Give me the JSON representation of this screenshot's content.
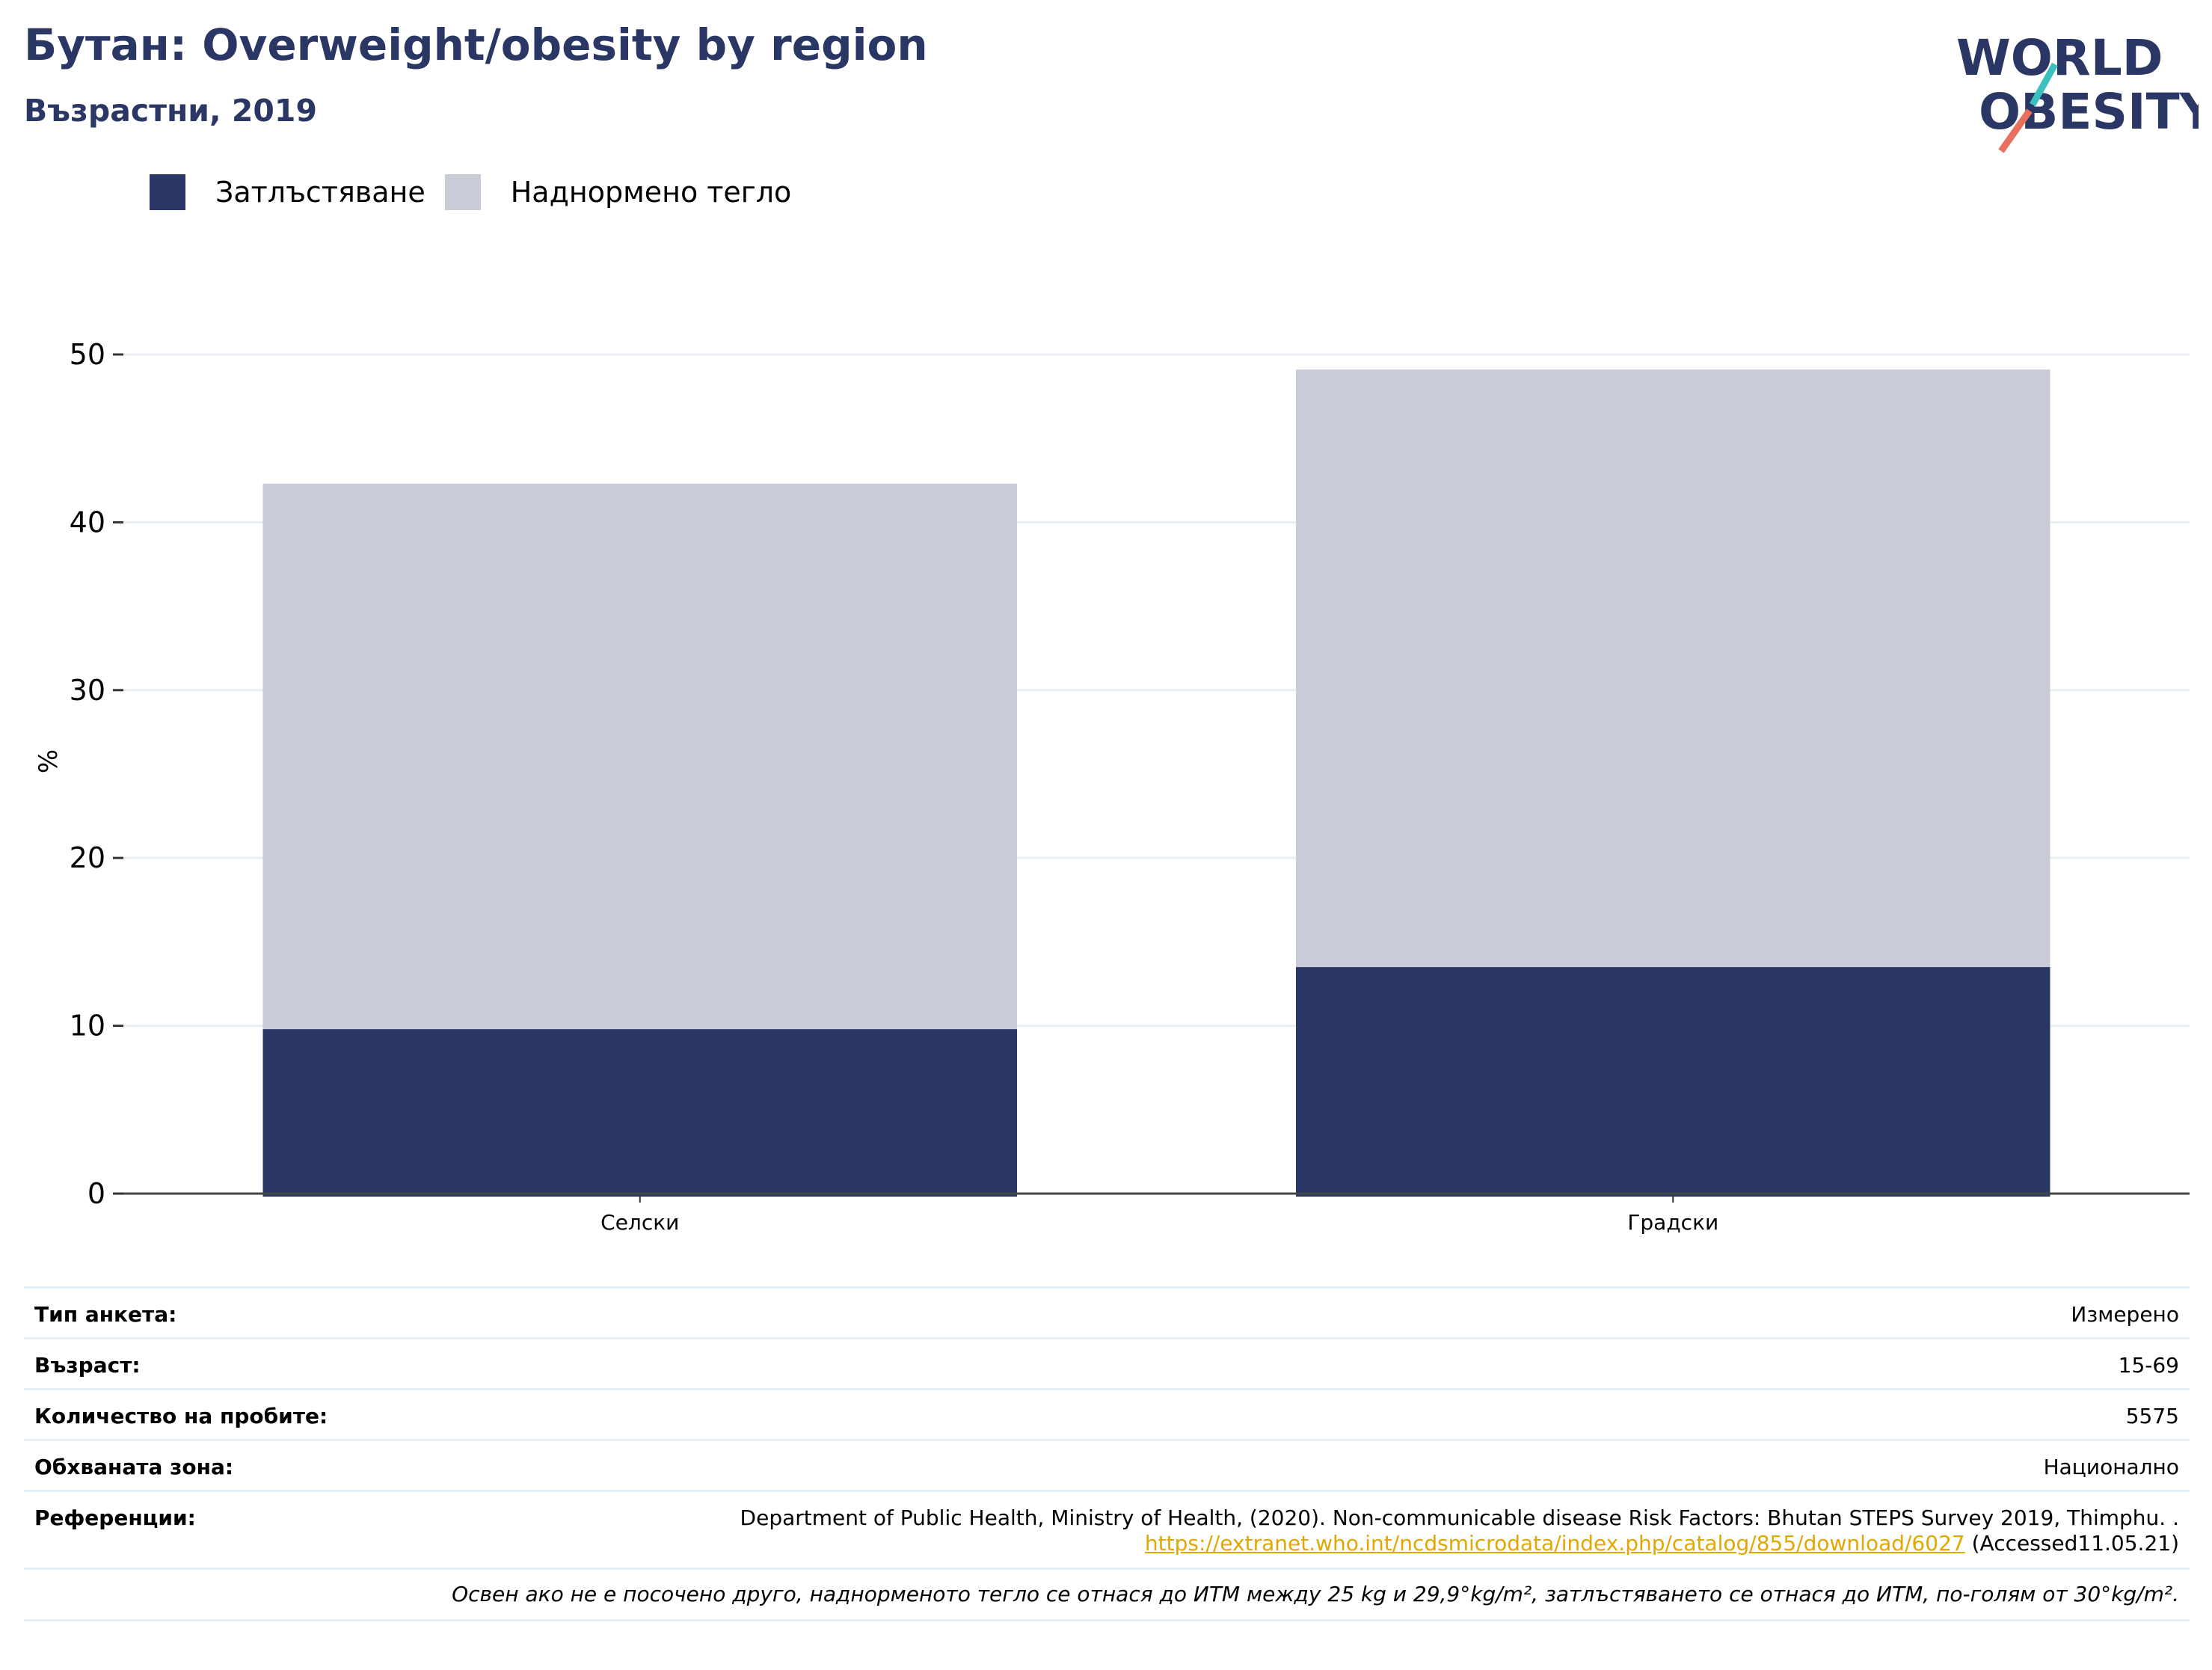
{
  "header": {
    "title": "Бутан: Overweight/obesity by region",
    "subtitle": "Възрастни, 2019"
  },
  "logo": {
    "line1": "WORLD",
    "line2": "OBESITY",
    "colors": {
      "navy": "#2a3664",
      "teal": "#3cbfbf",
      "coral": "#e8705c"
    }
  },
  "chart_data": {
    "type": "bar",
    "stacked": true,
    "categories": [
      "Селски",
      "Градски"
    ],
    "series": [
      {
        "name": "Затлъстяване",
        "color": "#2a3664",
        "values": [
          9.8,
          13.5
        ]
      },
      {
        "name": "Наднормено тегло",
        "color": "#c9cbd7",
        "values": [
          32.5,
          35.6
        ]
      }
    ],
    "ylabel": "%",
    "xlabel": "",
    "ylim": [
      0,
      50
    ],
    "yticks": [
      0,
      10,
      20,
      30,
      40,
      50
    ],
    "grid": true,
    "legend_position": "top-left"
  },
  "info": {
    "survey_type": {
      "label": "Тип анкета:",
      "value": "Измерено"
    },
    "age": {
      "label": "Възраст:",
      "value": "15-69"
    },
    "sample_size": {
      "label": "Количество на пробите:",
      "value": "5575"
    },
    "coverage": {
      "label": "Обхваната зона:",
      "value": "Национално"
    },
    "references": {
      "label": "Референции:",
      "text": "Department of Public Health, Ministry of Health, (2020). Non-communicable disease Risk Factors: Bhutan STEPS Survey 2019, Thimphu. .",
      "link": "https://extranet.who.int/ncdsmicrodata/index.php/catalog/855/download/6027",
      "accessed": " (Accessed11.05.21)"
    },
    "note": "Освен ако не е посочено друго, наднорменото тегло се отнася до ИТМ между 25 kg и 29,9°kg/m², затлъстяването се отнася до ИТМ, по-голям от 30°kg/m²."
  }
}
